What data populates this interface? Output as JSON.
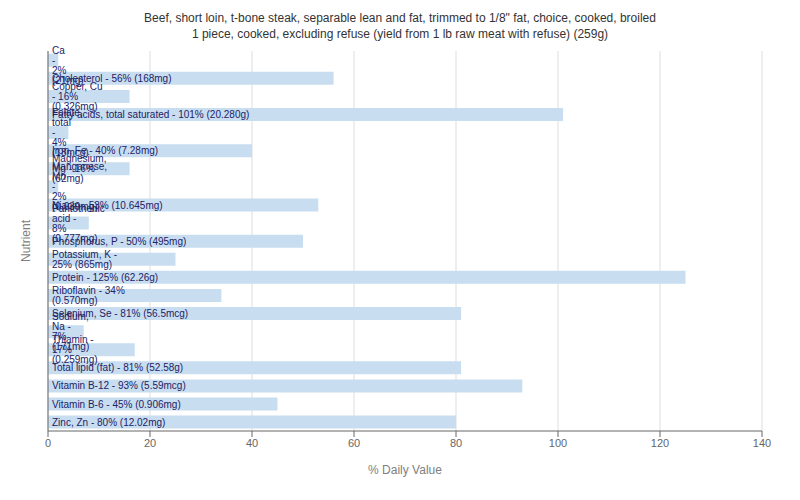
{
  "chart_data": {
    "type": "bar",
    "orientation": "horizontal",
    "title": "Beef, short loin, t-bone steak, separable lean and fat, trimmed to 1/8\" fat, choice, cooked, broiled\n1 piece, cooked, excluding refuse (yield from 1 lb raw meat with refuse) (259g)",
    "x_label": "% Daily Value",
    "y_label": "Nutrient",
    "categories": [
      "Calcium, Ca - 2% (21mg)",
      "Cholesterol - 56% (168mg)",
      "Copper, Cu - 16% (0.326mg)",
      "Fatty acids, total saturated - 101% (20.280g)",
      "Folate, total - 4% (18mcg)",
      "Iron, Fe - 40% (7.28mg)",
      "Magnesium, Mg - 16% (62mg)",
      "Manganese, Mn - 2% (0.039mg)",
      "Niacin - 53% (10.645mg)",
      "Pantothenic acid - 8% (0.777mg)",
      "Phosphorus, P - 50% (495mg)",
      "Potassium, K - 25% (865mg)",
      "Protein - 125% (62.26g)",
      "Riboflavin - 34% (0.570mg)",
      "Selenium, Se - 81% (56.5mcg)",
      "Sodium, Na - 7% (171mg)",
      "Thiamin - 17% (0.259mg)",
      "Total lipid (fat) - 81% (52.58g)",
      "Vitamin B-12 - 93% (5.59mcg)",
      "Vitamin B-6 - 45% (0.906mg)",
      "Zinc, Zn - 80% (12.02mg)"
    ],
    "values": [
      2,
      56,
      16,
      101,
      4,
      40,
      16,
      2,
      53,
      8,
      50,
      25,
      125,
      34,
      81,
      7,
      17,
      81,
      93,
      45,
      80
    ],
    "color": "#c8ddf0",
    "xlim": [
      0,
      140
    ],
    "xticks": [
      0,
      20,
      40,
      60,
      80,
      100,
      120,
      140
    ],
    "grid": true,
    "tick_labels": "x"
  }
}
